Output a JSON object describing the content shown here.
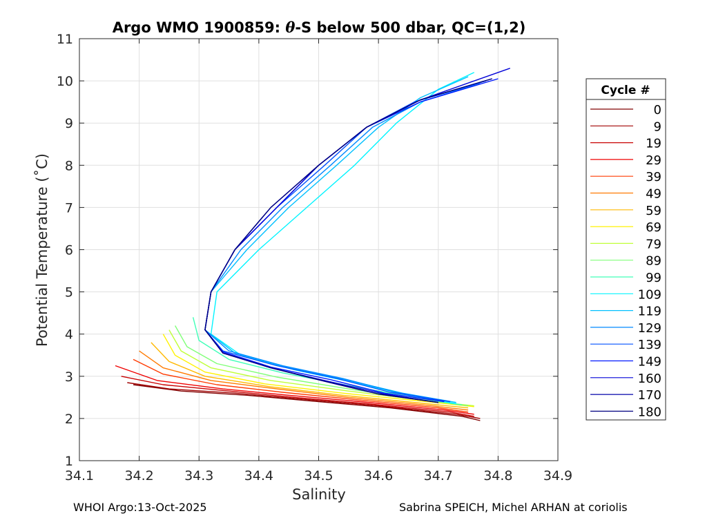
{
  "chart_data": {
    "type": "line",
    "title_prefix": "Argo WMO 1900859: ",
    "title_theta": "θ",
    "title_suffix": "-S below 500 dbar,  QC=(1,2)",
    "xlabel": "Salinity",
    "ylabel": "Potential Temperature (˚C)",
    "xlim": [
      34.1,
      34.9
    ],
    "ylim": [
      1,
      11
    ],
    "xticks": [
      34.1,
      34.2,
      34.3,
      34.4,
      34.5,
      34.6,
      34.7,
      34.8,
      34.9
    ],
    "xtick_labels": [
      "34.1",
      "34.2",
      "34.3",
      "34.4",
      "34.5",
      "34.6",
      "34.7",
      "34.8",
      "34.9"
    ],
    "yticks": [
      1,
      2,
      3,
      4,
      5,
      6,
      7,
      8,
      9,
      10,
      11
    ],
    "ytick_labels": [
      "1",
      "2",
      "3",
      "4",
      "5",
      "6",
      "7",
      "8",
      "9",
      "10",
      "11"
    ],
    "grid": true,
    "legend_title": "Cycle #",
    "legend_position": "right-outside",
    "legend": [
      {
        "label": "0",
        "color": "#800000"
      },
      {
        "label": "9",
        "color": "#a00000"
      },
      {
        "label": "19",
        "color": "#c80000"
      },
      {
        "label": "29",
        "color": "#ef0000"
      },
      {
        "label": "39",
        "color": "#ff3a00"
      },
      {
        "label": "49",
        "color": "#ff7a00"
      },
      {
        "label": "59",
        "color": "#ffb800"
      },
      {
        "label": "69",
        "color": "#fff200"
      },
      {
        "label": "79",
        "color": "#c0ff38"
      },
      {
        "label": "89",
        "color": "#80ff78"
      },
      {
        "label": "99",
        "color": "#40ffb8"
      },
      {
        "label": "109",
        "color": "#00f4ff"
      },
      {
        "label": "119",
        "color": "#00c0ff"
      },
      {
        "label": "129",
        "color": "#0088ff"
      },
      {
        "label": "139",
        "color": "#0050ff"
      },
      {
        "label": "149",
        "color": "#0018ff"
      },
      {
        "label": "160",
        "color": "#0000d8"
      },
      {
        "label": "170",
        "color": "#0000a8"
      },
      {
        "label": "180",
        "color": "#000080"
      }
    ],
    "series": [
      {
        "name": "0",
        "color": "#800000",
        "x": [
          34.77,
          34.74,
          34.62,
          34.5,
          34.38,
          34.27,
          34.19
        ],
        "y": [
          1.95,
          2.05,
          2.25,
          2.4,
          2.55,
          2.65,
          2.8
        ]
      },
      {
        "name": "9",
        "color": "#a00000",
        "x": [
          34.77,
          34.73,
          34.6,
          34.48,
          34.36,
          34.25,
          34.18
        ],
        "y": [
          2.0,
          2.1,
          2.3,
          2.45,
          2.6,
          2.7,
          2.85
        ]
      },
      {
        "name": "19",
        "color": "#c80000",
        "x": [
          34.76,
          34.72,
          34.58,
          34.46,
          34.35,
          34.24,
          34.17
        ],
        "y": [
          2.05,
          2.15,
          2.35,
          2.5,
          2.65,
          2.8,
          3.0
        ]
      },
      {
        "name": "29",
        "color": "#ef0000",
        "x": [
          34.76,
          34.71,
          34.57,
          34.45,
          34.34,
          34.23,
          34.16
        ],
        "y": [
          2.1,
          2.2,
          2.4,
          2.55,
          2.7,
          2.9,
          3.25
        ]
      },
      {
        "name": "39",
        "color": "#ff3a00",
        "x": [
          34.75,
          34.7,
          34.56,
          34.44,
          34.33,
          34.24,
          34.19
        ],
        "y": [
          2.15,
          2.25,
          2.45,
          2.62,
          2.8,
          3.05,
          3.4
        ]
      },
      {
        "name": "49",
        "color": "#ff7a00",
        "x": [
          34.75,
          34.69,
          34.55,
          34.43,
          34.32,
          34.24,
          34.2
        ],
        "y": [
          2.2,
          2.3,
          2.5,
          2.7,
          2.9,
          3.2,
          3.6
        ]
      },
      {
        "name": "59",
        "color": "#ffb800",
        "x": [
          34.75,
          34.68,
          34.54,
          34.42,
          34.31,
          34.25,
          34.22
        ],
        "y": [
          2.25,
          2.35,
          2.55,
          2.75,
          3.0,
          3.35,
          3.8
        ]
      },
      {
        "name": "69",
        "color": "#fff200",
        "x": [
          34.76,
          34.68,
          34.54,
          34.41,
          34.31,
          34.26,
          34.24
        ],
        "y": [
          2.28,
          2.4,
          2.6,
          2.82,
          3.1,
          3.5,
          4.0
        ]
      },
      {
        "name": "79",
        "color": "#c0ff38",
        "x": [
          34.76,
          34.68,
          34.55,
          34.42,
          34.32,
          34.27,
          34.25
        ],
        "y": [
          2.3,
          2.42,
          2.65,
          2.9,
          3.2,
          3.6,
          4.1
        ]
      },
      {
        "name": "89",
        "color": "#80ff78",
        "x": [
          34.75,
          34.67,
          34.55,
          34.43,
          34.33,
          34.28,
          34.26
        ],
        "y": [
          2.3,
          2.45,
          2.7,
          2.98,
          3.3,
          3.7,
          4.2
        ]
      },
      {
        "name": "99",
        "color": "#40ffb8",
        "x": [
          34.74,
          34.66,
          34.55,
          34.44,
          34.35,
          34.3,
          34.29
        ],
        "y": [
          2.32,
          2.5,
          2.78,
          3.08,
          3.4,
          3.85,
          4.4
        ]
      },
      {
        "name": "109",
        "color": "#00f4ff",
        "x": [
          34.73,
          34.65,
          34.56,
          34.46,
          34.37,
          34.32,
          34.33,
          34.4,
          34.48,
          34.56,
          34.63,
          34.7,
          34.76
        ],
        "y": [
          2.35,
          2.55,
          2.85,
          3.15,
          3.5,
          4.0,
          5.0,
          6.0,
          7.0,
          8.0,
          9.0,
          9.8,
          10.2
        ]
      },
      {
        "name": "119",
        "color": "#00c0ff",
        "x": [
          34.73,
          34.64,
          34.55,
          34.45,
          34.36,
          34.31,
          34.32,
          34.38,
          34.45,
          34.53,
          34.6,
          34.67,
          34.75
        ],
        "y": [
          2.38,
          2.6,
          2.9,
          3.2,
          3.55,
          4.1,
          5.0,
          6.0,
          7.0,
          8.0,
          8.9,
          9.6,
          10.1
        ]
      },
      {
        "name": "129",
        "color": "#0088ff",
        "x": [
          34.72,
          34.63,
          34.54,
          34.44,
          34.35,
          34.31,
          34.32,
          34.37,
          34.44,
          34.52,
          34.59,
          34.67,
          34.77
        ],
        "y": [
          2.4,
          2.62,
          2.95,
          3.25,
          3.6,
          4.1,
          5.0,
          6.0,
          7.0,
          8.0,
          8.9,
          9.5,
          9.95
        ]
      },
      {
        "name": "139",
        "color": "#0050ff",
        "x": [
          34.72,
          34.62,
          34.53,
          34.43,
          34.34,
          34.31,
          34.32,
          34.36,
          34.43,
          34.51,
          34.58,
          34.66,
          34.78
        ],
        "y": [
          2.4,
          2.62,
          2.95,
          3.25,
          3.6,
          4.1,
          5.0,
          6.0,
          7.0,
          8.0,
          8.9,
          9.5,
          10.0
        ]
      },
      {
        "name": "149",
        "color": "#0018ff",
        "x": [
          34.71,
          34.61,
          34.52,
          34.42,
          34.34,
          34.31,
          34.32,
          34.36,
          34.43,
          34.5,
          34.58,
          34.67,
          34.8
        ],
        "y": [
          2.4,
          2.6,
          2.92,
          3.22,
          3.58,
          4.1,
          5.0,
          6.0,
          7.0,
          8.0,
          8.9,
          9.5,
          10.05
        ]
      },
      {
        "name": "160",
        "color": "#0000d8",
        "x": [
          34.7,
          34.61,
          34.51,
          34.42,
          34.34,
          34.31,
          34.32,
          34.36,
          34.43,
          34.5,
          34.58,
          34.67,
          34.82
        ],
        "y": [
          2.38,
          2.58,
          2.9,
          3.2,
          3.55,
          4.1,
          5.0,
          6.0,
          7.0,
          8.0,
          8.9,
          9.55,
          10.3
        ]
      },
      {
        "name": "170",
        "color": "#0000a8",
        "x": [
          34.7,
          34.6,
          34.51,
          34.42,
          34.34,
          34.31,
          34.32,
          34.36,
          34.42,
          34.5,
          34.58,
          34.67,
          34.79
        ],
        "y": [
          2.38,
          2.58,
          2.88,
          3.2,
          3.55,
          4.1,
          5.0,
          6.0,
          7.0,
          8.0,
          8.9,
          9.55,
          10.05
        ]
      },
      {
        "name": "180",
        "color": "#000080",
        "x": [
          34.7,
          34.6,
          34.51,
          34.42,
          34.34,
          34.31,
          34.32,
          34.36,
          34.42,
          34.5,
          34.58,
          34.67,
          34.79
        ],
        "y": [
          2.38,
          2.58,
          2.88,
          3.2,
          3.55,
          4.1,
          5.0,
          6.0,
          7.0,
          8.0,
          8.9,
          9.55,
          10.05
        ]
      }
    ]
  },
  "footer": {
    "left": "WHOI Argo:13-Oct-2025",
    "right": "Sabrina SPEICH, Michel ARHAN at coriolis"
  }
}
